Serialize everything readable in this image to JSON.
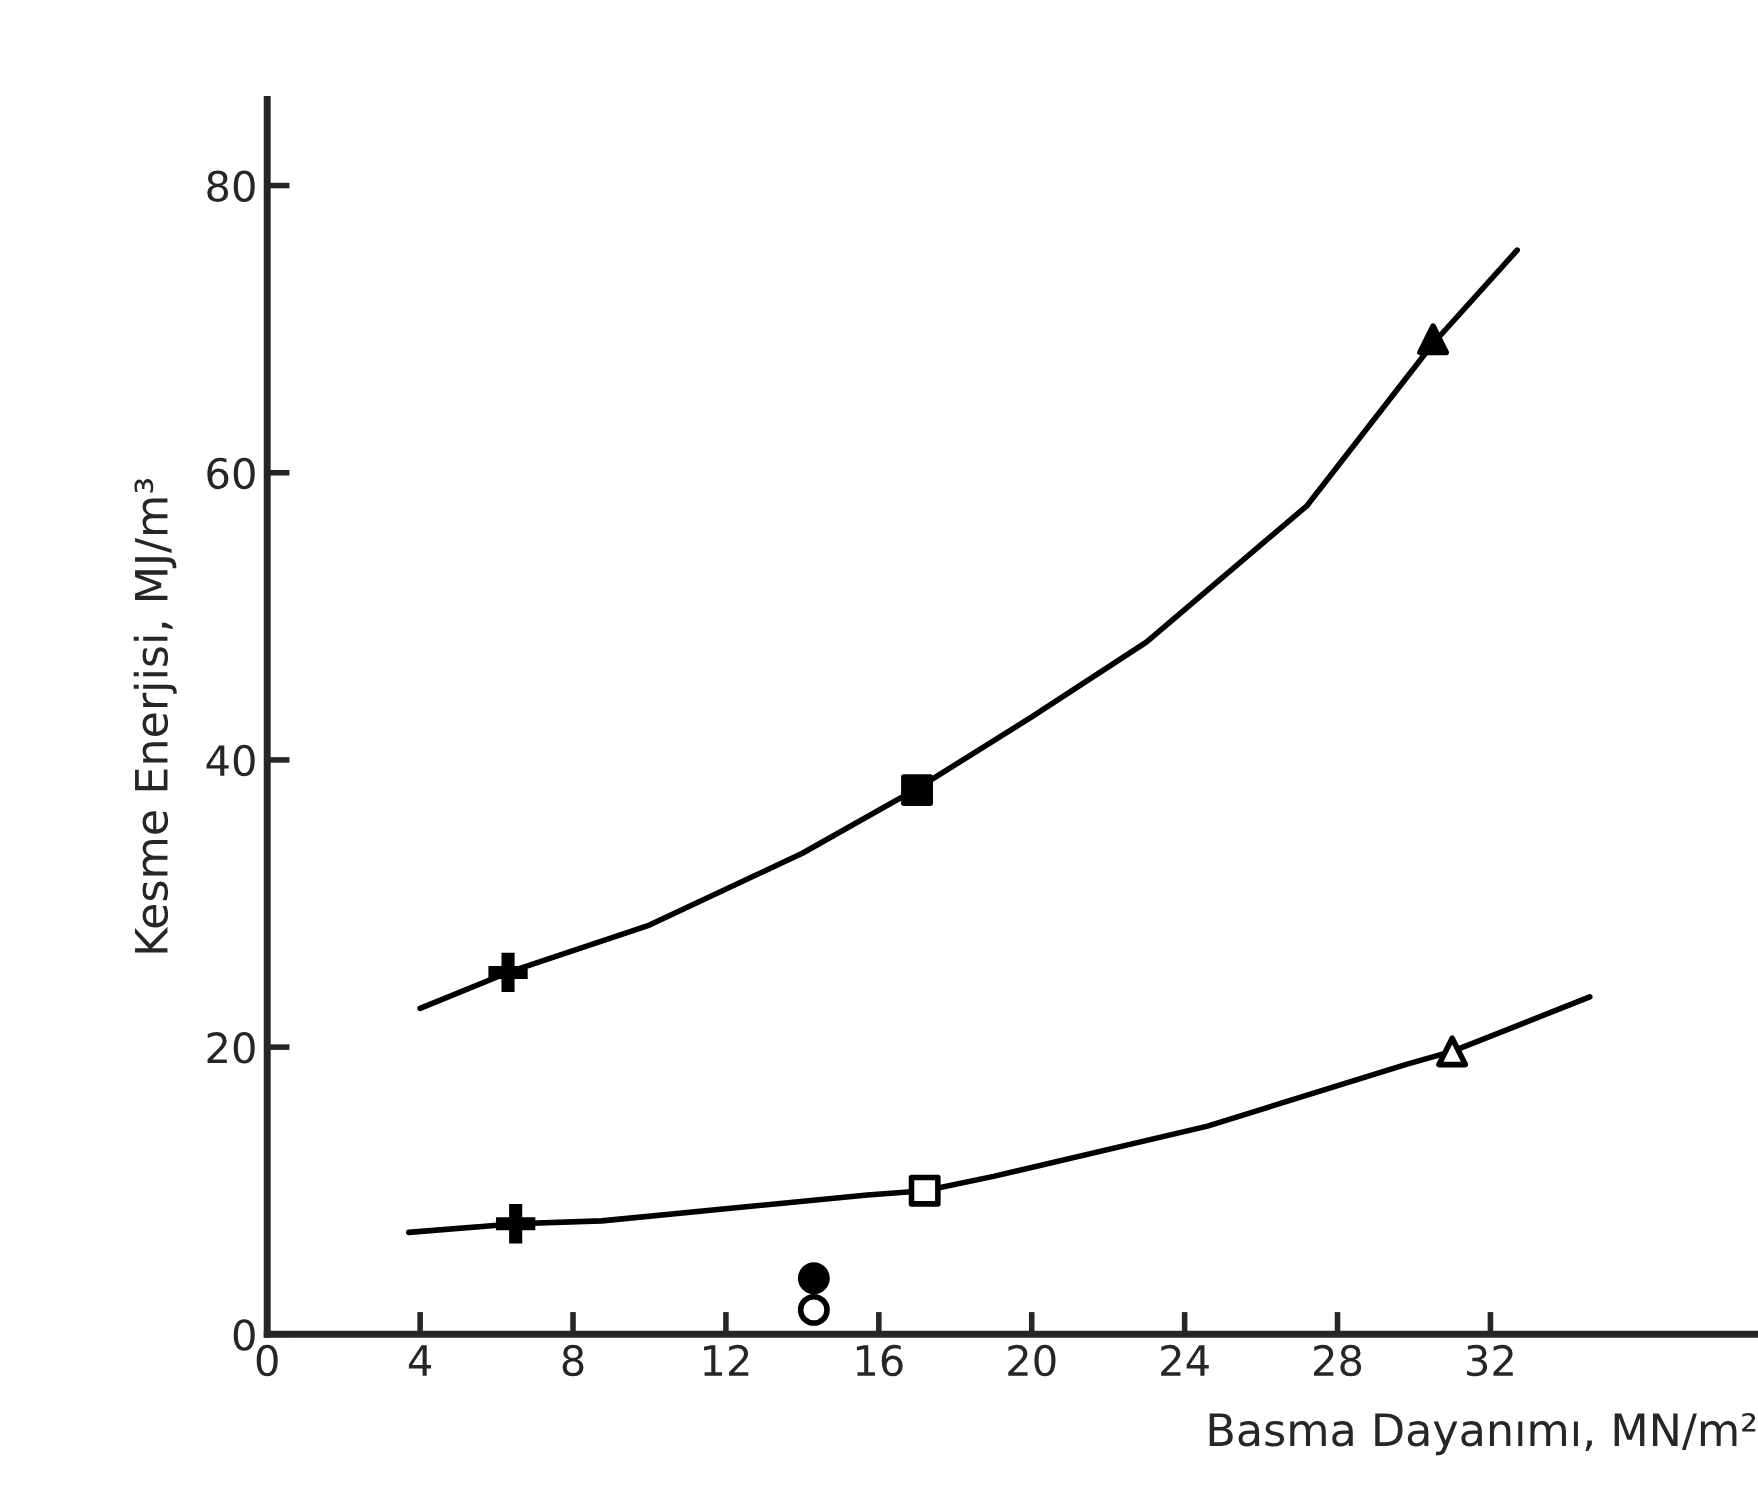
{
  "chart_data": {
    "type": "line",
    "xlabel": "Basma Dayanımı, MN/m²",
    "ylabel": "Kesme Enerjisi, MJ/m³",
    "xlim": [
      0,
      39
    ],
    "ylim": [
      0,
      86
    ],
    "xticks": [
      0,
      4,
      8,
      12,
      16,
      20,
      24,
      28,
      32
    ],
    "yticks": [
      0,
      20,
      40,
      60,
      80
    ],
    "grid": false,
    "legend": false,
    "series": [
      {
        "color": "#000000",
        "marker": "none",
        "line_style": "solid",
        "x": [
          4,
          6.3,
          10,
          14,
          17,
          20,
          23,
          27.2,
          30.5,
          32.7
        ],
        "values": [
          22.7,
          25.2,
          28.5,
          33.5,
          38,
          43,
          48.2,
          57.7,
          69,
          75.5
        ]
      },
      {
        "color": "#000000",
        "marker": "none",
        "line_style": "solid",
        "x": [
          3.7,
          6.5,
          8.75,
          15.7,
          17.2,
          19,
          24.6,
          29.8,
          31,
          34.6
        ],
        "values": [
          7.1,
          7.7,
          7.9,
          9.7,
          10,
          11,
          14.5,
          18.8,
          19.7,
          23.5
        ]
      },
      {
        "type": "scatter",
        "color": "#000000",
        "marker": "cross",
        "x": [
          6.3,
          6.5
        ],
        "values": [
          25.2,
          7.7
        ]
      },
      {
        "type": "scatter",
        "color": "#000000",
        "marker": "square",
        "x": [
          17
        ],
        "values": [
          37.9
        ]
      },
      {
        "type": "scatter",
        "color": "#000000",
        "marker": "triangle",
        "x": [
          30.5
        ],
        "values": [
          69.3
        ]
      },
      {
        "type": "scatter",
        "color": "#ffffff",
        "marker": "square",
        "x": [
          17.2
        ],
        "values": [
          10
        ]
      },
      {
        "type": "scatter",
        "color": "#ffffff",
        "marker": "triangle",
        "x": [
          31
        ],
        "values": [
          19.7
        ]
      },
      {
        "type": "scatter",
        "color": "#000000",
        "marker": "circle",
        "x": [
          14.3
        ],
        "values": [
          3.9
        ]
      },
      {
        "type": "scatter",
        "color": "#ffffff",
        "marker": "circle",
        "x": [
          14.3
        ],
        "values": [
          1.7
        ]
      }
    ]
  }
}
